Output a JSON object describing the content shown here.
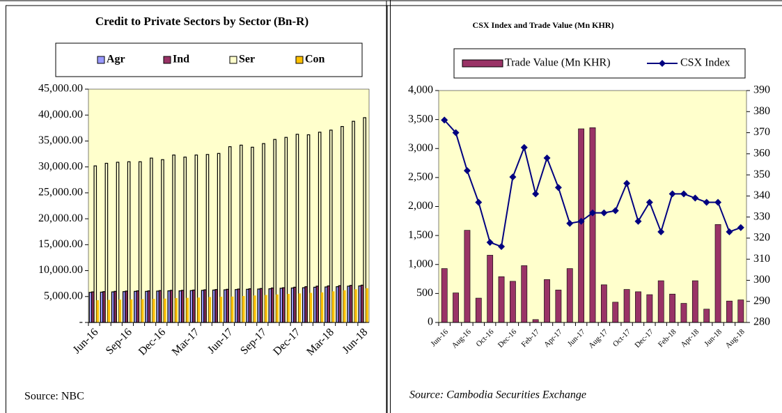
{
  "chart_data": [
    {
      "type": "bar",
      "title": "Credit to Private Sectors by Sector (Bn-R)",
      "source": "Source: NBC",
      "categories": [
        "Jun-16",
        null,
        null,
        "Sep-16",
        null,
        null,
        "Dec-16",
        null,
        null,
        "Mar-17",
        null,
        null,
        "Jun-17",
        null,
        null,
        "Sep-17",
        null,
        null,
        "Dec-17",
        null,
        null,
        "Mar-18",
        null,
        null,
        "Jun-18"
      ],
      "series": [
        {
          "name": "Agr",
          "color": "#9999ff",
          "values": [
            5800,
            5850,
            5900,
            5950,
            6000,
            6000,
            6050,
            6100,
            6100,
            6150,
            6200,
            6250,
            6300,
            6350,
            6400,
            6450,
            6500,
            6600,
            6650,
            6700,
            6800,
            6850,
            6900,
            7000,
            7050
          ]
        },
        {
          "name": "Ind",
          "color": "#993366",
          "values": [
            5900,
            5950,
            6000,
            6050,
            6100,
            6100,
            6150,
            6200,
            6200,
            6250,
            6300,
            6350,
            6400,
            6450,
            6500,
            6550,
            6650,
            6700,
            6800,
            6900,
            7000,
            7050,
            7100,
            7150,
            7200
          ]
        },
        {
          "name": "Ser",
          "color": "#ffffcc",
          "values": [
            30200,
            30700,
            30900,
            31000,
            31000,
            31700,
            31400,
            32300,
            31900,
            32300,
            32400,
            32600,
            33900,
            34200,
            33800,
            34500,
            35300,
            35700,
            36300,
            36200,
            36700,
            37100,
            37800,
            38800,
            39500
          ]
        },
        {
          "name": "Con",
          "color": "#ffc000",
          "values": [
            4300,
            4350,
            4400,
            4450,
            4500,
            4550,
            4600,
            4700,
            4750,
            4800,
            4900,
            4950,
            5000,
            5100,
            5200,
            5300,
            5400,
            5500,
            5600,
            5700,
            5800,
            6000,
            6200,
            6400,
            6600
          ]
        }
      ],
      "ylim": [
        0,
        45000
      ],
      "yticks": [
        {
          "value": 0,
          "label": "-"
        },
        {
          "value": 5000,
          "label": "5,000.00"
        },
        {
          "value": 10000,
          "label": "10,000.00"
        },
        {
          "value": 15000,
          "label": "15,000.00"
        },
        {
          "value": 20000,
          "label": "20,000.00"
        },
        {
          "value": 25000,
          "label": "25,000.00"
        },
        {
          "value": 30000,
          "label": "30,000.00"
        },
        {
          "value": 35000,
          "label": "35,000.00"
        },
        {
          "value": 40000,
          "label": "40,000.00"
        },
        {
          "value": 45000,
          "label": "45,000.00"
        }
      ],
      "plot_background": "#ffffcc"
    },
    {
      "type": "combo",
      "title": "CSX Index  and Trade Value (Mn KHR)",
      "source": "Source: Cambodia Securities Exchange",
      "categories": [
        "Jun-16",
        null,
        "Aug-16",
        null,
        "Oct-16",
        null,
        "Dec-16",
        null,
        "Feb-17",
        null,
        "Apr-17",
        null,
        "Jun-17",
        null,
        "Aug-17",
        null,
        "Oct-17",
        null,
        "Dec-17",
        null,
        "Feb-18",
        null,
        "Apr-18",
        null,
        "Jun-18",
        null,
        "Aug-18"
      ],
      "series": [
        {
          "name": "Trade Value (Mn KHR)",
          "type": "bar",
          "color": "#993366",
          "values": [
            930,
            510,
            1590,
            420,
            1160,
            790,
            710,
            980,
            50,
            740,
            560,
            930,
            3340,
            3360,
            650,
            350,
            570,
            530,
            480,
            720,
            490,
            330,
            720,
            230,
            1690,
            370,
            390
          ]
        },
        {
          "name": "CSX Index",
          "type": "line",
          "axis": "y2",
          "color": "#000080",
          "values": [
            376,
            370,
            352,
            337,
            318,
            316,
            349,
            363,
            341,
            358,
            344,
            327,
            328,
            332,
            332,
            333,
            346,
            328,
            337,
            323,
            341,
            341,
            339,
            337,
            337,
            323,
            325
          ]
        }
      ],
      "ylim": [
        0,
        4000
      ],
      "yticks": [
        0,
        500,
        {
          "value": 1000,
          "label": "1,000"
        },
        {
          "value": 1500,
          "label": "1,500"
        },
        {
          "value": 2000,
          "label": "2,000"
        },
        {
          "value": 2500,
          "label": "2,500"
        },
        {
          "value": 3000,
          "label": "3,000"
        },
        {
          "value": 3500,
          "label": "3,500"
        },
        {
          "value": 4000,
          "label": "4,000"
        }
      ],
      "y2lim": [
        280,
        390
      ],
      "y2ticks": [
        280,
        290,
        300,
        310,
        320,
        330,
        340,
        350,
        360,
        370,
        380,
        390
      ],
      "plot_background": "#ffffcc"
    }
  ]
}
